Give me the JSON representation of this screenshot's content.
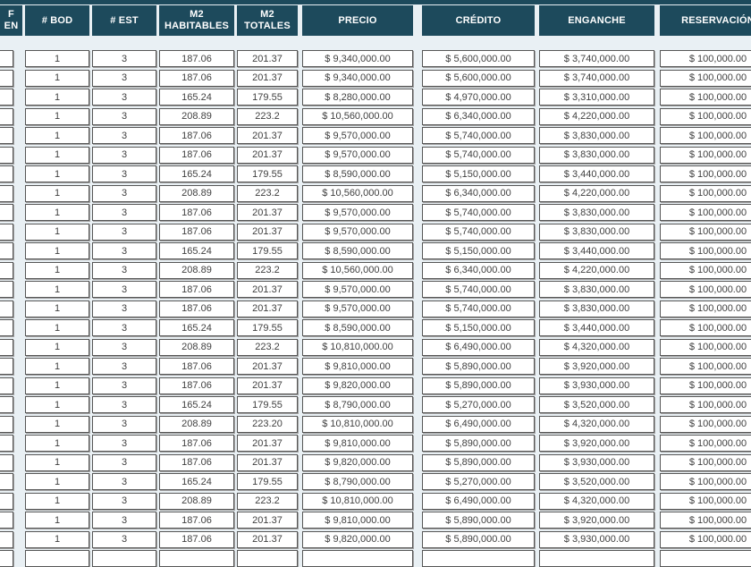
{
  "colors": {
    "header_bg": "#1d4a5c",
    "header_text": "#ffffff",
    "page_bg": "#e9f0f4",
    "cell_bg": "#ffffff",
    "cell_border": "#565656",
    "cell_text": "#3f3f3f"
  },
  "table": {
    "columns": [
      {
        "id": "roof_garden",
        "label": "F\nEN",
        "note": "left-edge column cut off by screen; only fragment visible"
      },
      {
        "id": "bod",
        "label": "# BOD"
      },
      {
        "id": "est",
        "label": "# EST"
      },
      {
        "id": "m2_habitables",
        "label": "M2\nHABITABLES"
      },
      {
        "id": "m2_totales",
        "label": "M2\nTOTALES"
      },
      {
        "id": "precio",
        "label": "PRECIO"
      },
      {
        "id": "credito",
        "label": "CRÉDITO"
      },
      {
        "id": "enganche",
        "label": "ENGANCHE"
      },
      {
        "id": "reservacion",
        "label": "RESERVACIÓN"
      }
    ],
    "rows": [
      {
        "roof_garden": "",
        "bod": "1",
        "est": "3",
        "m2_habitables": "187.06",
        "m2_totales": "201.37",
        "precio": "$ 9,340,000.00",
        "credito": "$ 5,600,000.00",
        "enganche": "$ 3,740,000.00",
        "reservacion": "$ 100,000.00"
      },
      {
        "roof_garden": "",
        "bod": "1",
        "est": "3",
        "m2_habitables": "187.06",
        "m2_totales": "201.37",
        "precio": "$ 9,340,000.00",
        "credito": "$ 5,600,000.00",
        "enganche": "$ 3,740,000.00",
        "reservacion": "$ 100,000.00"
      },
      {
        "roof_garden": "",
        "bod": "1",
        "est": "3",
        "m2_habitables": "165.24",
        "m2_totales": "179.55",
        "precio": "$ 8,280,000.00",
        "credito": "$ 4,970,000.00",
        "enganche": "$ 3,310,000.00",
        "reservacion": "$ 100,000.00"
      },
      {
        "roof_garden": "",
        "bod": "1",
        "est": "3",
        "m2_habitables": "208.89",
        "m2_totales": "223.2",
        "precio": "$ 10,560,000.00",
        "credito": "$ 6,340,000.00",
        "enganche": "$ 4,220,000.00",
        "reservacion": "$ 100,000.00"
      },
      {
        "roof_garden": "",
        "bod": "1",
        "est": "3",
        "m2_habitables": "187.06",
        "m2_totales": "201.37",
        "precio": "$ 9,570,000.00",
        "credito": "$ 5,740,000.00",
        "enganche": "$ 3,830,000.00",
        "reservacion": "$ 100,000.00"
      },
      {
        "roof_garden": "",
        "bod": "1",
        "est": "3",
        "m2_habitables": "187.06",
        "m2_totales": "201.37",
        "precio": "$ 9,570,000.00",
        "credito": "$ 5,740,000.00",
        "enganche": "$ 3,830,000.00",
        "reservacion": "$ 100,000.00"
      },
      {
        "roof_garden": "",
        "bod": "1",
        "est": "3",
        "m2_habitables": "165.24",
        "m2_totales": "179.55",
        "precio": "$ 8,590,000.00",
        "credito": "$ 5,150,000.00",
        "enganche": "$ 3,440,000.00",
        "reservacion": "$ 100,000.00"
      },
      {
        "roof_garden": "",
        "bod": "1",
        "est": "3",
        "m2_habitables": "208.89",
        "m2_totales": "223.2",
        "precio": "$ 10,560,000.00",
        "credito": "$ 6,340,000.00",
        "enganche": "$ 4,220,000.00",
        "reservacion": "$ 100,000.00"
      },
      {
        "roof_garden": "",
        "bod": "1",
        "est": "3",
        "m2_habitables": "187.06",
        "m2_totales": "201.37",
        "precio": "$ 9,570,000.00",
        "credito": "$ 5,740,000.00",
        "enganche": "$ 3,830,000.00",
        "reservacion": "$ 100,000.00"
      },
      {
        "roof_garden": "",
        "bod": "1",
        "est": "3",
        "m2_habitables": "187.06",
        "m2_totales": "201.37",
        "precio": "$ 9,570,000.00",
        "credito": "$ 5,740,000.00",
        "enganche": "$ 3,830,000.00",
        "reservacion": "$ 100,000.00"
      },
      {
        "roof_garden": "",
        "bod": "1",
        "est": "3",
        "m2_habitables": "165.24",
        "m2_totales": "179.55",
        "precio": "$ 8,590,000.00",
        "credito": "$ 5,150,000.00",
        "enganche": "$ 3,440,000.00",
        "reservacion": "$ 100,000.00"
      },
      {
        "roof_garden": "",
        "bod": "1",
        "est": "3",
        "m2_habitables": "208.89",
        "m2_totales": "223.2",
        "precio": "$ 10,560,000.00",
        "credito": "$ 6,340,000.00",
        "enganche": "$ 4,220,000.00",
        "reservacion": "$ 100,000.00"
      },
      {
        "roof_garden": "",
        "bod": "1",
        "est": "3",
        "m2_habitables": "187.06",
        "m2_totales": "201.37",
        "precio": "$ 9,570,000.00",
        "credito": "$ 5,740,000.00",
        "enganche": "$ 3,830,000.00",
        "reservacion": "$ 100,000.00"
      },
      {
        "roof_garden": "",
        "bod": "1",
        "est": "3",
        "m2_habitables": "187.06",
        "m2_totales": "201.37",
        "precio": "$ 9,570,000.00",
        "credito": "$ 5,740,000.00",
        "enganche": "$ 3,830,000.00",
        "reservacion": "$ 100,000.00"
      },
      {
        "roof_garden": "",
        "bod": "1",
        "est": "3",
        "m2_habitables": "165.24",
        "m2_totales": "179.55",
        "precio": "$ 8,590,000.00",
        "credito": "$ 5,150,000.00",
        "enganche": "$ 3,440,000.00",
        "reservacion": "$ 100,000.00"
      },
      {
        "roof_garden": "",
        "bod": "1",
        "est": "3",
        "m2_habitables": "208.89",
        "m2_totales": "223.2",
        "precio": "$ 10,810,000.00",
        "credito": "$ 6,490,000.00",
        "enganche": "$ 4,320,000.00",
        "reservacion": "$ 100,000.00"
      },
      {
        "roof_garden": "",
        "bod": "1",
        "est": "3",
        "m2_habitables": "187.06",
        "m2_totales": "201.37",
        "precio": "$ 9,810,000.00",
        "credito": "$ 5,890,000.00",
        "enganche": "$ 3,920,000.00",
        "reservacion": "$ 100,000.00"
      },
      {
        "roof_garden": "",
        "bod": "1",
        "est": "3",
        "m2_habitables": "187.06",
        "m2_totales": "201.37",
        "precio": "$ 9,820,000.00",
        "credito": "$ 5,890,000.00",
        "enganche": "$ 3,930,000.00",
        "reservacion": "$ 100,000.00"
      },
      {
        "roof_garden": "",
        "bod": "1",
        "est": "3",
        "m2_habitables": "165.24",
        "m2_totales": "179.55",
        "precio": "$ 8,790,000.00",
        "credito": "$ 5,270,000.00",
        "enganche": "$ 3,520,000.00",
        "reservacion": "$ 100,000.00"
      },
      {
        "roof_garden": "",
        "bod": "1",
        "est": "3",
        "m2_habitables": "208.89",
        "m2_totales": "223.20",
        "precio": "$ 10,810,000.00",
        "credito": "$ 6,490,000.00",
        "enganche": "$ 4,320,000.00",
        "reservacion": "$ 100,000.00"
      },
      {
        "roof_garden": "",
        "bod": "1",
        "est": "3",
        "m2_habitables": "187.06",
        "m2_totales": "201.37",
        "precio": "$ 9,810,000.00",
        "credito": "$ 5,890,000.00",
        "enganche": "$ 3,920,000.00",
        "reservacion": "$ 100,000.00"
      },
      {
        "roof_garden": "",
        "bod": "1",
        "est": "3",
        "m2_habitables": "187.06",
        "m2_totales": "201.37",
        "precio": "$ 9,820,000.00",
        "credito": "$ 5,890,000.00",
        "enganche": "$ 3,930,000.00",
        "reservacion": "$ 100,000.00"
      },
      {
        "roof_garden": "",
        "bod": "1",
        "est": "3",
        "m2_habitables": "165.24",
        "m2_totales": "179.55",
        "precio": "$ 8,790,000.00",
        "credito": "$ 5,270,000.00",
        "enganche": "$ 3,520,000.00",
        "reservacion": "$ 100,000.00"
      },
      {
        "roof_garden": "",
        "bod": "1",
        "est": "3",
        "m2_habitables": "208.89",
        "m2_totales": "223.2",
        "precio": "$ 10,810,000.00",
        "credito": "$ 6,490,000.00",
        "enganche": "$ 4,320,000.00",
        "reservacion": "$ 100,000.00"
      },
      {
        "roof_garden": "",
        "bod": "1",
        "est": "3",
        "m2_habitables": "187.06",
        "m2_totales": "201.37",
        "precio": "$ 9,810,000.00",
        "credito": "$ 5,890,000.00",
        "enganche": "$ 3,920,000.00",
        "reservacion": "$ 100,000.00"
      },
      {
        "roof_garden": "",
        "bod": "1",
        "est": "3",
        "m2_habitables": "187.06",
        "m2_totales": "201.37",
        "precio": "$ 9,820,000.00",
        "credito": "$ 5,890,000.00",
        "enganche": "$ 3,930,000.00",
        "reservacion": "$ 100,000.00"
      },
      {
        "roof_garden": "",
        "bod": "",
        "est": "",
        "m2_habitables": "",
        "m2_totales": "",
        "precio": "",
        "credito": "",
        "enganche": "",
        "reservacion": ""
      }
    ]
  }
}
